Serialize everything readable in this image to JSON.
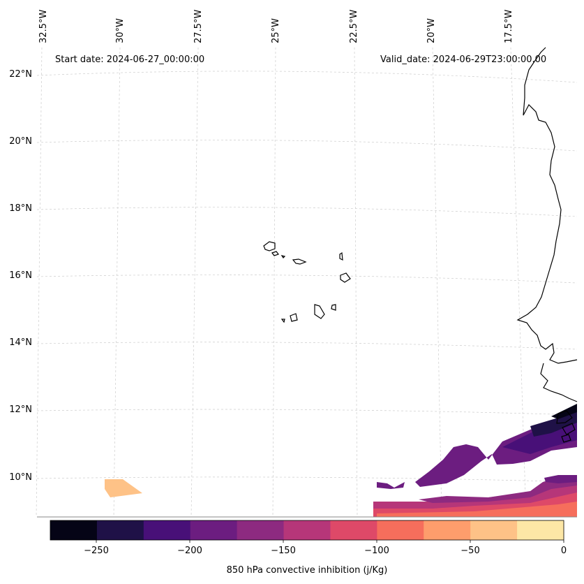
{
  "map": {
    "start_date": "Start date: 2024-06-27_00:00:00",
    "valid_date": "Valid_date: 2024-06-29T23:00:00.00",
    "lon_labels": [
      "32.5°W",
      "30°W",
      "27.5°W",
      "25°W",
      "22.5°W",
      "20°W",
      "17.5°W"
    ],
    "lat_labels": [
      "22°N",
      "20°N",
      "18°N",
      "16°N",
      "14°N",
      "12°N",
      "10°N"
    ],
    "features": [
      "Cabo Verde islands",
      "West African coastline"
    ]
  },
  "colorbar": {
    "label": "850 hPa convective inhibition (j/Kg)",
    "ticks": [
      "−250",
      "−200",
      "−150",
      "−100",
      "−50",
      "0"
    ],
    "levels": [
      -275,
      -250,
      -225,
      -200,
      -175,
      -150,
      -125,
      -100,
      -75,
      -50,
      -25,
      0
    ],
    "colors": [
      "#050416",
      "#1f1147",
      "#481078",
      "#6c1d80",
      "#8d2a80",
      "#b63679",
      "#de4968",
      "#f66e5c",
      "#fe9d6c",
      "#fec287",
      "#fde7a6"
    ]
  }
}
